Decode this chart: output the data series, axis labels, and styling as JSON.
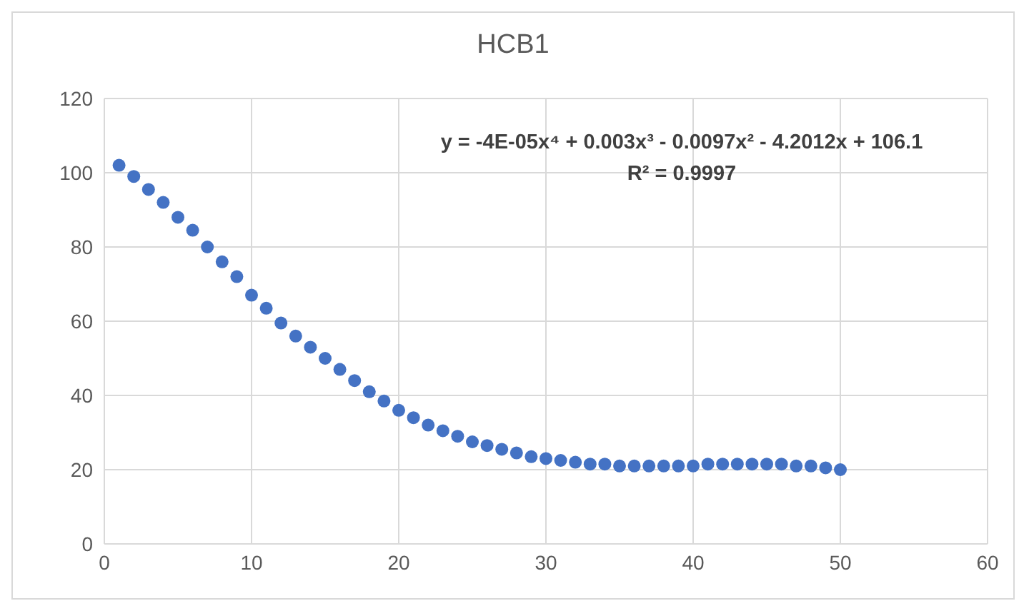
{
  "chart_data": {
    "type": "scatter",
    "title": "HCB1",
    "x": [
      1,
      2,
      3,
      4,
      5,
      6,
      7,
      8,
      9,
      10,
      11,
      12,
      13,
      14,
      15,
      16,
      17,
      18,
      19,
      20,
      21,
      22,
      23,
      24,
      25,
      26,
      27,
      28,
      29,
      30,
      31,
      32,
      33,
      34,
      35,
      36,
      37,
      38,
      39,
      40,
      41,
      42,
      43,
      44,
      45,
      46,
      47,
      48,
      49,
      50
    ],
    "series": [
      {
        "color": "#4472c4",
        "values": [
          102,
          99,
          95.5,
          92,
          88,
          84.5,
          80,
          76,
          72,
          67,
          63.5,
          59.5,
          56,
          53,
          50,
          47,
          44,
          41,
          38.5,
          36,
          34,
          32,
          30.5,
          29,
          27.5,
          26.5,
          25.5,
          24.5,
          23.5,
          23,
          22.5,
          22,
          21.5,
          21.5,
          21,
          21,
          21,
          21,
          21,
          21,
          21.5,
          21.5,
          21.5,
          21.5,
          21.5,
          21.5,
          21,
          21,
          20.5,
          20
        ]
      }
    ],
    "xlim": [
      0,
      60
    ],
    "xticks": [
      0,
      10,
      20,
      30,
      40,
      50,
      60
    ],
    "ylim": [
      0,
      120
    ],
    "yticks": [
      0,
      20,
      40,
      60,
      80,
      100,
      120
    ],
    "grid": true,
    "marker": "circle",
    "annotations": [
      "y = -4E-05x⁴ + 0.003x³ - 0.0097x² - 4.2012x + 106.1",
      "R² = 0.9997"
    ]
  }
}
